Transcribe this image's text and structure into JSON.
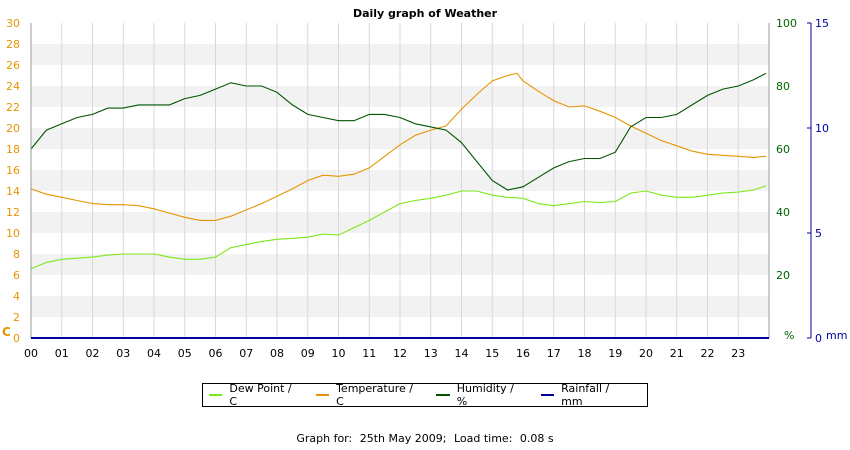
{
  "chart_data": {
    "type": "line",
    "title": "Daily graph of Weather",
    "x_ticks": [
      "00",
      "01",
      "02",
      "03",
      "04",
      "05",
      "06",
      "07",
      "08",
      "09",
      "10",
      "11",
      "12",
      "13",
      "14",
      "15",
      "16",
      "17",
      "18",
      "19",
      "20",
      "21",
      "22",
      "23"
    ],
    "xlim": [
      0,
      24
    ],
    "axes": {
      "temperature": {
        "unit_label": "C",
        "range": [
          0,
          30
        ],
        "ticks": [
          0,
          2,
          4,
          6,
          8,
          10,
          12,
          14,
          16,
          18,
          20,
          22,
          24,
          26,
          28,
          30
        ],
        "side": "left",
        "color": "#e69500"
      },
      "humidity": {
        "unit_label": "%",
        "range": [
          0,
          100
        ],
        "ticks": [
          0,
          20,
          40,
          60,
          80,
          100
        ],
        "side": "right",
        "color": "#006600"
      },
      "rainfall": {
        "unit_label": "mm",
        "range": [
          0,
          15
        ],
        "ticks": [
          0,
          5,
          10,
          15
        ],
        "side": "right-outer",
        "color": "#000099"
      }
    },
    "grid": true,
    "legend_position": "bottom",
    "series": [
      {
        "name": "Dew Point / C",
        "axis": "temperature",
        "color": "#7ce81a",
        "x": [
          0,
          0.5,
          1,
          1.5,
          2,
          2.5,
          3,
          3.5,
          4,
          4.5,
          5,
          5.5,
          6,
          6.5,
          7,
          7.5,
          8,
          8.5,
          9,
          9.5,
          10,
          10.5,
          11,
          11.5,
          12,
          12.5,
          13,
          13.5,
          14,
          14.5,
          15,
          15.5,
          16,
          16.5,
          17,
          17.5,
          18,
          18.5,
          19,
          19.5,
          20,
          20.5,
          21,
          21.5,
          22,
          22.5,
          23,
          23.5,
          23.9
        ],
        "y": [
          6.6,
          7.2,
          7.5,
          7.6,
          7.7,
          7.9,
          8.0,
          8.0,
          8.0,
          7.7,
          7.5,
          7.5,
          7.7,
          8.6,
          8.9,
          9.2,
          9.4,
          9.5,
          9.6,
          9.9,
          9.8,
          10.5,
          11.2,
          12.0,
          12.8,
          13.1,
          13.3,
          13.6,
          14.0,
          14.0,
          13.6,
          13.4,
          13.3,
          12.8,
          12.6,
          12.8,
          13.0,
          12.9,
          13.0,
          13.8,
          14.0,
          13.6,
          13.4,
          13.4,
          13.6,
          13.8,
          13.9,
          14.1,
          14.5
        ]
      },
      {
        "name": "Temperature / C",
        "axis": "temperature",
        "color": "#e69500",
        "x": [
          0,
          0.5,
          1,
          1.5,
          2,
          2.5,
          3,
          3.5,
          4,
          4.5,
          5,
          5.5,
          6,
          6.5,
          7,
          7.5,
          8,
          8.5,
          9,
          9.5,
          10,
          10.5,
          11,
          11.5,
          12,
          12.5,
          13,
          13.5,
          14,
          14.5,
          15,
          15.5,
          15.8,
          16,
          16.5,
          17,
          17.5,
          18,
          18.5,
          19,
          19.5,
          20,
          20.5,
          21,
          21.5,
          22,
          22.5,
          23,
          23.5,
          23.9
        ],
        "y": [
          14.2,
          13.7,
          13.4,
          13.1,
          12.8,
          12.7,
          12.7,
          12.6,
          12.3,
          11.9,
          11.5,
          11.2,
          11.2,
          11.6,
          12.2,
          12.8,
          13.5,
          14.2,
          15.0,
          15.5,
          15.4,
          15.6,
          16.2,
          17.3,
          18.4,
          19.3,
          19.8,
          20.2,
          21.8,
          23.2,
          24.5,
          25.0,
          25.2,
          24.5,
          23.5,
          22.6,
          22.0,
          22.1,
          21.6,
          21.0,
          20.2,
          19.5,
          18.8,
          18.3,
          17.8,
          17.5,
          17.4,
          17.3,
          17.2,
          17.3
        ]
      },
      {
        "name": "Humidity / %",
        "axis": "humidity",
        "color": "#005500",
        "x": [
          0,
          0.5,
          1,
          1.5,
          2,
          2.5,
          3,
          3.5,
          4,
          4.5,
          5,
          5.5,
          6,
          6.5,
          7,
          7.5,
          8,
          8.5,
          9,
          9.5,
          10,
          10.5,
          11,
          11.5,
          12,
          12.5,
          13,
          13.5,
          14,
          14.5,
          15,
          15.5,
          16,
          16.5,
          17,
          17.5,
          18,
          18.5,
          19,
          19.5,
          20,
          20.5,
          21,
          21.5,
          22,
          22.5,
          23,
          23.5,
          23.9
        ],
        "y": [
          60,
          66,
          68,
          70,
          71,
          73,
          73,
          74,
          74,
          74,
          76,
          77,
          79,
          81,
          80,
          80,
          78,
          74,
          71,
          70,
          69,
          69,
          71,
          71,
          70,
          68,
          67,
          66,
          62,
          56,
          50,
          47,
          48,
          51,
          54,
          56,
          57,
          57,
          59,
          67,
          70,
          70,
          71,
          74,
          77,
          79,
          80,
          82,
          84
        ]
      },
      {
        "name": "Rainfall / mm",
        "axis": "rainfall",
        "color": "#000099",
        "x": [
          0,
          23.9
        ],
        "y": [
          0,
          0
        ]
      }
    ]
  },
  "footer": {
    "label": "Graph for:",
    "date": "25th May 2009;",
    "load_label": "Load time:",
    "load_value": "0.08 s"
  }
}
